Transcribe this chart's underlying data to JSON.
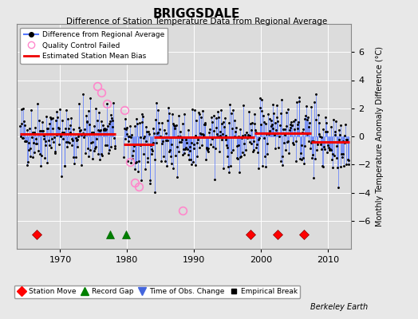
{
  "title": "BRIGGSDALE",
  "subtitle": "Difference of Station Temperature Data from Regional Average",
  "ylabel": "Monthly Temperature Anomaly Difference (°C)",
  "credit": "Berkeley Earth",
  "ylim": [
    -8,
    8
  ],
  "yticks": [
    -6,
    -4,
    -2,
    0,
    2,
    4,
    6
  ],
  "xlim": [
    1963.5,
    2013.5
  ],
  "xticks": [
    1970,
    1980,
    1990,
    2000,
    2010
  ],
  "bg_color": "#e8e8e8",
  "plot_bg_color": "#dcdcdc",
  "grid_color": "#ffffff",
  "seed": 42,
  "line_color": "#5577ff",
  "dot_color": "#000000",
  "bias_color": "#ee0000",
  "qc_color": "#ff88cc",
  "segments": [
    {
      "start": 1964.0,
      "end": 1978.25,
      "bias": 0.18
    },
    {
      "start": 1979.5,
      "end": 1984.0,
      "bias": -0.55
    },
    {
      "start": 1984.0,
      "end": 1999.0,
      "bias": -0.08
    },
    {
      "start": 1999.0,
      "end": 2007.5,
      "bias": 0.22
    },
    {
      "start": 2007.5,
      "end": 2013.2,
      "bias": -0.42
    }
  ],
  "gap_start": 1978.25,
  "gap_end": 1979.5,
  "station_moves": [
    1966.5,
    1998.5,
    2002.5,
    2006.5
  ],
  "record_gaps": [
    1977.5,
    1979.8
  ],
  "qc_failed": [
    {
      "t": 1975.5,
      "v": 3.6
    },
    {
      "t": 1976.1,
      "v": 3.1
    },
    {
      "t": 1977.0,
      "v": 2.3
    },
    {
      "t": 1979.6,
      "v": 1.9
    },
    {
      "t": 1980.4,
      "v": -1.8
    },
    {
      "t": 1981.1,
      "v": -3.3
    },
    {
      "t": 1981.7,
      "v": -3.6
    },
    {
      "t": 1988.3,
      "v": -5.3
    }
  ]
}
